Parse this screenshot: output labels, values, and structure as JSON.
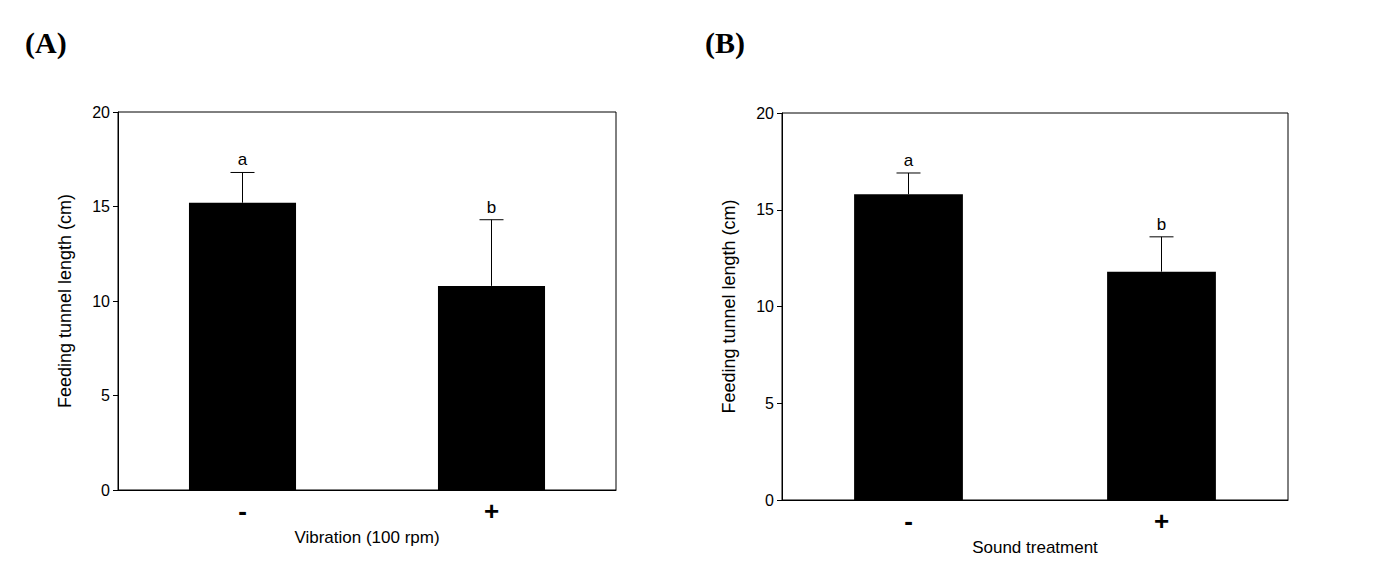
{
  "chart_data": [
    {
      "type": "bar",
      "title": "(A)",
      "x_label": "Vibration (100 rpm)",
      "y_label": "Feeding tunnel length (cm)",
      "categories": [
        "-",
        "+"
      ],
      "values": [
        15.2,
        10.8
      ],
      "errors": [
        1.6,
        3.5
      ],
      "annotations": [
        "a",
        "b"
      ],
      "color": "#000000",
      "ylim": [
        0,
        20
      ],
      "yticks": [
        0,
        5,
        10,
        15,
        20
      ],
      "grid": false
    },
    {
      "type": "bar",
      "title": "(B)",
      "x_label": "Sound treatment",
      "y_label": "Feeding tunnel length (cm)",
      "categories": [
        "-",
        "+"
      ],
      "values": [
        15.8,
        11.8
      ],
      "errors": [
        1.1,
        1.8
      ],
      "annotations": [
        "a",
        "b"
      ],
      "color": "#000000",
      "ylim": [
        0,
        20
      ],
      "yticks": [
        0,
        5,
        10,
        15,
        20
      ],
      "grid": false
    }
  ]
}
